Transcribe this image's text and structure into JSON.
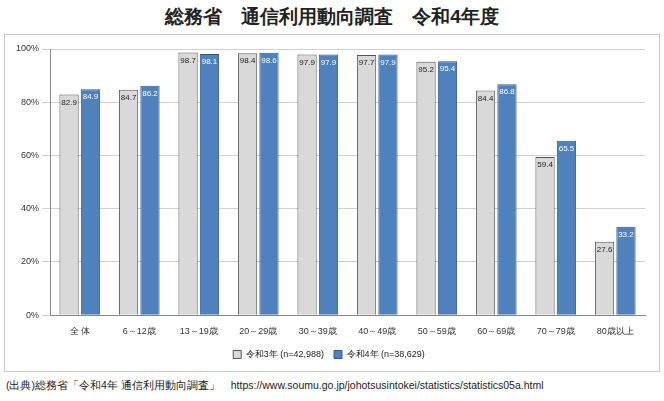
{
  "chart_data": {
    "type": "bar",
    "title": "総務省　通信利用動向調査　令和4年度",
    "categories": [
      "全 体",
      "6～12歳",
      "13～19歳",
      "20～29歳",
      "30～39歳",
      "40～49歳",
      "50～59歳",
      "60～69歳",
      "70～79歳",
      "80歳以上"
    ],
    "series": [
      {
        "name": "令和3年 (n=42,988)",
        "color": "#d9d9d9",
        "values": [
          82.9,
          84.7,
          98.7,
          98.4,
          97.9,
          97.7,
          95.2,
          84.4,
          59.4,
          27.6
        ]
      },
      {
        "name": "令和4年 (n=38,629)",
        "color": "#4f81bd",
        "values": [
          84.9,
          86.2,
          98.1,
          98.6,
          97.9,
          97.9,
          95.4,
          86.8,
          65.5,
          33.2
        ]
      }
    ],
    "ylim": [
      0,
      100
    ],
    "yticks": [
      {
        "value": 0,
        "label": "0%"
      },
      {
        "value": 20,
        "label": "20%"
      },
      {
        "value": 40,
        "label": "40%"
      },
      {
        "value": 60,
        "label": "60%"
      },
      {
        "value": 80,
        "label": "80%"
      },
      {
        "value": 100,
        "label": "100%"
      }
    ],
    "grid": true,
    "legend": "bottom",
    "data_labels": true,
    "annotations": [
      "(出典)総務省「令和4年 通信利用動向調査」　https://www.soumu.go.jp/johotsusintokei/statistics/statistics05a.html"
    ]
  }
}
